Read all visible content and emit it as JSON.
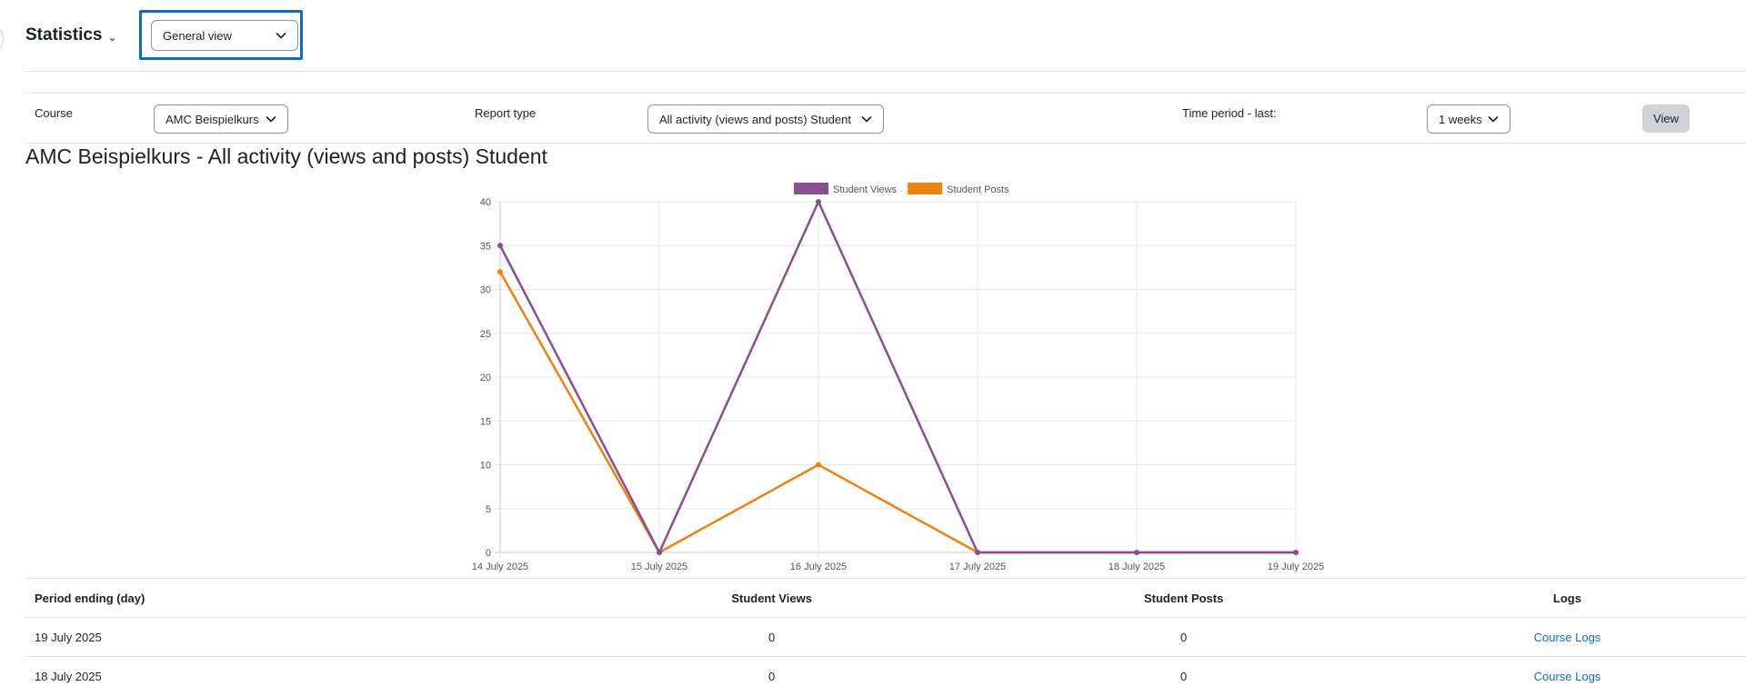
{
  "header": {
    "title": "Statistics",
    "view_select": "General view"
  },
  "filters": {
    "course_label": "Course",
    "course_value": "AMC Beispielkurs",
    "report_type_label": "Report type",
    "report_type_value": "All activity (views and posts) Student",
    "time_period_label": "Time period - last:",
    "time_period_value": "1 weeks",
    "view_button": "View"
  },
  "report_title": "AMC Beispielkurs - All activity (views and posts) Student",
  "colors": {
    "views": "#8a4f91",
    "posts": "#f0820f",
    "link": "#0f6cbf"
  },
  "chart_data": {
    "type": "line",
    "x": [
      "14 July 2025",
      "15 July 2025",
      "16 July 2025",
      "17 July 2025",
      "18 July 2025",
      "19 July 2025"
    ],
    "series": [
      {
        "name": "Student Views",
        "values": [
          35,
          0,
          40,
          0,
          0,
          0
        ]
      },
      {
        "name": "Student Posts",
        "values": [
          32,
          0,
          10,
          0,
          0,
          0
        ]
      }
    ],
    "ylim": [
      0,
      40
    ],
    "yticks": [
      "0",
      "5",
      "10",
      "15",
      "20",
      "25",
      "30",
      "35",
      "40"
    ],
    "legend": "top",
    "grid": true
  },
  "table": {
    "headers": [
      "Period ending (day)",
      "Student Views",
      "Student Posts",
      "Logs"
    ],
    "rows": [
      {
        "period": "19 July 2025",
        "views": "0",
        "posts": "0",
        "logs": "Course Logs"
      },
      {
        "period": "18 July 2025",
        "views": "0",
        "posts": "0",
        "logs": "Course Logs"
      }
    ]
  }
}
